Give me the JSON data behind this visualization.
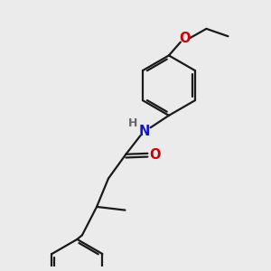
{
  "bg_color": "#ebebeb",
  "bond_color": "#1a1a1a",
  "bond_width": 1.6,
  "atom_colors": {
    "O": "#cc0000",
    "N": "#1414cc",
    "H": "#666666",
    "C": "#1a1a1a"
  },
  "font_size_atom": 10.5,
  "font_size_h": 9.0
}
